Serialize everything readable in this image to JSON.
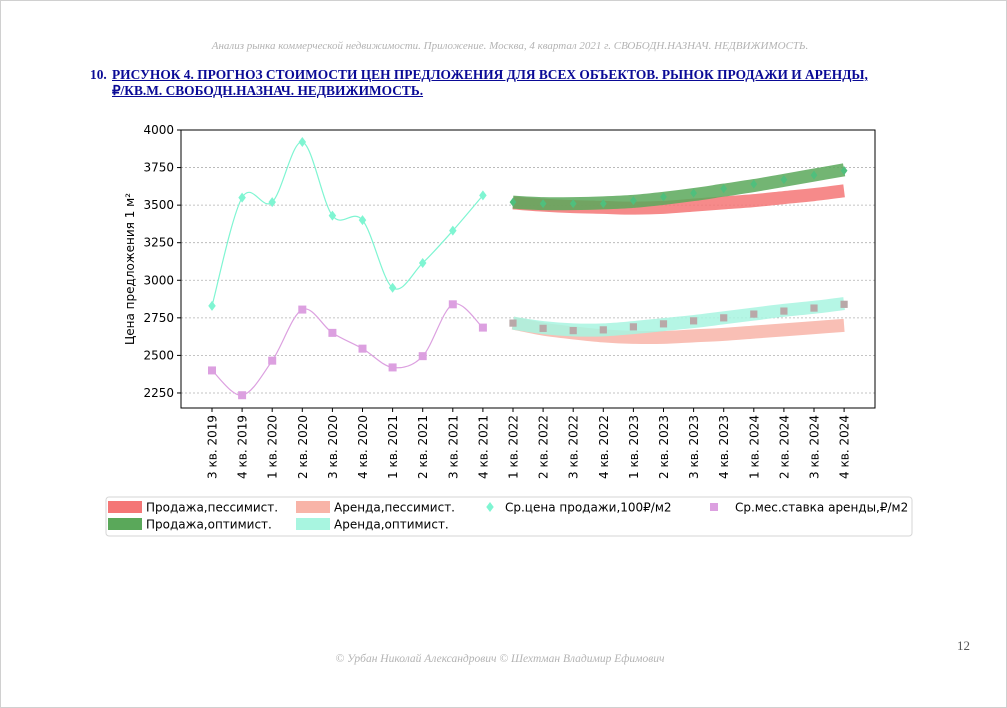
{
  "header": {
    "running_title": "Анализ рынка коммерческой недвижимости. Приложение.  Москва,  4 квартал 2021 г.  СВОБОДН.НАЗНАЧ. НЕДВИЖИМОСТЬ."
  },
  "figure": {
    "number": "10.",
    "title_line1": "РИСУНОК 4. ПРОГНОЗ СТОИМОСТИ ЦЕН ПРЕДЛОЖЕНИЯ ДЛЯ ВСЕХ ОБЪЕКТОВ. РЫНОК ПРОДАЖИ И АРЕНДЫ,",
    "title_line2": "₽/КВ.М. СВОБОДН.НАЗНАЧ. НЕДВИЖИМОСТЬ."
  },
  "chart_data": {
    "type": "line",
    "title": "",
    "xlabel": "",
    "ylabel": "Цена предложения 1 м²",
    "ylim": [
      2150,
      4000
    ],
    "yticks": [
      2250,
      2500,
      2750,
      3000,
      3250,
      3500,
      3750,
      4000
    ],
    "grid": "horizontal, dotted",
    "legend_position": "below-plot",
    "categories": [
      "3 кв. 2019",
      "4 кв. 2019",
      "1 кв. 2020",
      "2 кв. 2020",
      "3 кв. 2020",
      "4 кв. 2020",
      "1 кв. 2021",
      "2 кв. 2021",
      "3 кв. 2021",
      "4 кв. 2021",
      "1 кв. 2022",
      "2 кв. 2022",
      "3 кв. 2022",
      "4 кв. 2022",
      "1 кв. 2023",
      "2 кв. 2023",
      "3 кв. 2023",
      "4 кв. 2023",
      "1 кв. 2024",
      "2 кв. 2024",
      "3 кв. 2024",
      "4 кв. 2024"
    ],
    "series": [
      {
        "name": "Ср.цена продажи,100₽/м2",
        "kind": "markers-with-smooth-line",
        "marker": "diamond",
        "color": "#7ff5d2",
        "values": [
          2830,
          3550,
          3520,
          3920,
          3430,
          3400,
          2950,
          3115,
          3330,
          3565,
          null,
          null,
          null,
          null,
          null,
          null,
          null,
          null,
          null,
          null,
          null,
          null
        ]
      },
      {
        "name": "Ср.мес.ставка аренды,₽/м2",
        "kind": "markers-with-smooth-line",
        "marker": "square",
        "color": "#dca0e0",
        "values": [
          2400,
          2235,
          2465,
          2805,
          2650,
          2545,
          2420,
          2495,
          2840,
          2685,
          null,
          null,
          null,
          null,
          null,
          null,
          null,
          null,
          null,
          null,
          null,
          null
        ]
      },
      {
        "name": "Продажа,пессимист.",
        "kind": "band",
        "color": "#f47676",
        "values": [
          null,
          null,
          null,
          null,
          null,
          null,
          null,
          null,
          null,
          null,
          3515,
          3500,
          3490,
          3485,
          3480,
          3485,
          3500,
          3515,
          3530,
          3550,
          3570,
          3595
        ]
      },
      {
        "name": "Продажа,оптимист.",
        "kind": "band",
        "color": "#5aa85a",
        "values": [
          null,
          null,
          null,
          null,
          null,
          null,
          null,
          null,
          null,
          null,
          3520,
          3510,
          3510,
          3515,
          3525,
          3545,
          3570,
          3600,
          3630,
          3665,
          3700,
          3735
        ]
      },
      {
        "name": "Аренда,пессимист.",
        "kind": "band",
        "color": "#f8b4a8",
        "values": [
          null,
          null,
          null,
          null,
          null,
          null,
          null,
          null,
          null,
          null,
          2715,
          2675,
          2650,
          2630,
          2620,
          2620,
          2630,
          2640,
          2655,
          2670,
          2685,
          2700
        ]
      },
      {
        "name": "Аренда,оптимист.",
        "kind": "band",
        "color": "#a8f5e0",
        "values": [
          null,
          null,
          null,
          null,
          null,
          null,
          null,
          null,
          null,
          null,
          2715,
          2685,
          2670,
          2670,
          2685,
          2705,
          2725,
          2750,
          2775,
          2800,
          2820,
          2845
        ]
      },
      {
        "name": "",
        "kind": "forecast-markers",
        "marker": "diamond",
        "color": "#4fbf7d",
        "values": [
          null,
          null,
          null,
          null,
          null,
          null,
          null,
          null,
          null,
          null,
          3520,
          3510,
          3510,
          3510,
          3530,
          3555,
          3580,
          3610,
          3640,
          3670,
          3700,
          3730
        ]
      },
      {
        "name": "",
        "kind": "forecast-markers",
        "marker": "square",
        "color": "#b9a8a8",
        "values": [
          null,
          null,
          null,
          null,
          null,
          null,
          null,
          null,
          null,
          null,
          2715,
          2680,
          2665,
          2670,
          2690,
          2710,
          2730,
          2750,
          2775,
          2795,
          2815,
          2840
        ]
      }
    ],
    "legend": [
      {
        "label": "Продажа,пессимист.",
        "swatch": "band",
        "color": "#f47676"
      },
      {
        "label": "Аренда,пессимист.",
        "swatch": "band",
        "color": "#f8b4a8"
      },
      {
        "label": "Ср.цена продажи,100₽/м2",
        "swatch": "diamond",
        "color": "#7ff5d2"
      },
      {
        "label": "Ср.мес.ставка аренды,₽/м2",
        "swatch": "square",
        "color": "#dca0e0"
      },
      {
        "label": "Продажа,оптимист.",
        "swatch": "band",
        "color": "#5aa85a"
      },
      {
        "label": "Аренда,оптимист.",
        "swatch": "band",
        "color": "#a8f5e0"
      }
    ]
  },
  "footer": {
    "copyright": "© Урбан Николай Александрович   © Шехтман Владимир Ефимович",
    "page_number": "12"
  }
}
